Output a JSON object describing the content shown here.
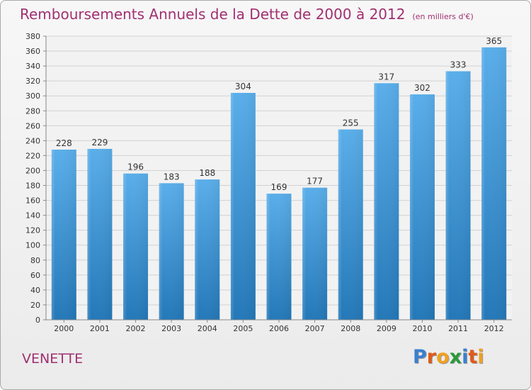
{
  "title": "Remboursements Annuels de la Dette de 2000 à 2012",
  "unit": "(en milliers d'€)",
  "city": "VENETTE",
  "logo": {
    "letters": [
      "P",
      "r",
      "o",
      "x",
      "i",
      "t",
      "i"
    ],
    "colors": [
      "#3a7fd0",
      "#e05a1a",
      "#f0a020",
      "#2a9a3a",
      "#3a7fd0",
      "#e05a1a",
      "#f0a020"
    ]
  },
  "colors": {
    "accent": "#a03070",
    "bar_light": "#5aaeea",
    "bar_dark": "#2478b8"
  },
  "chart_data": {
    "type": "bar",
    "categories": [
      "2000",
      "2001",
      "2002",
      "2003",
      "2004",
      "2005",
      "2006",
      "2007",
      "2008",
      "2009",
      "2010",
      "2011",
      "2012"
    ],
    "values": [
      228,
      229,
      196,
      183,
      188,
      304,
      169,
      177,
      255,
      317,
      302,
      333,
      365
    ],
    "ylim": [
      0,
      380
    ],
    "yticks": [
      0,
      20,
      40,
      60,
      80,
      100,
      120,
      140,
      160,
      180,
      200,
      220,
      240,
      260,
      280,
      300,
      320,
      340,
      360,
      380
    ],
    "grid": true
  }
}
